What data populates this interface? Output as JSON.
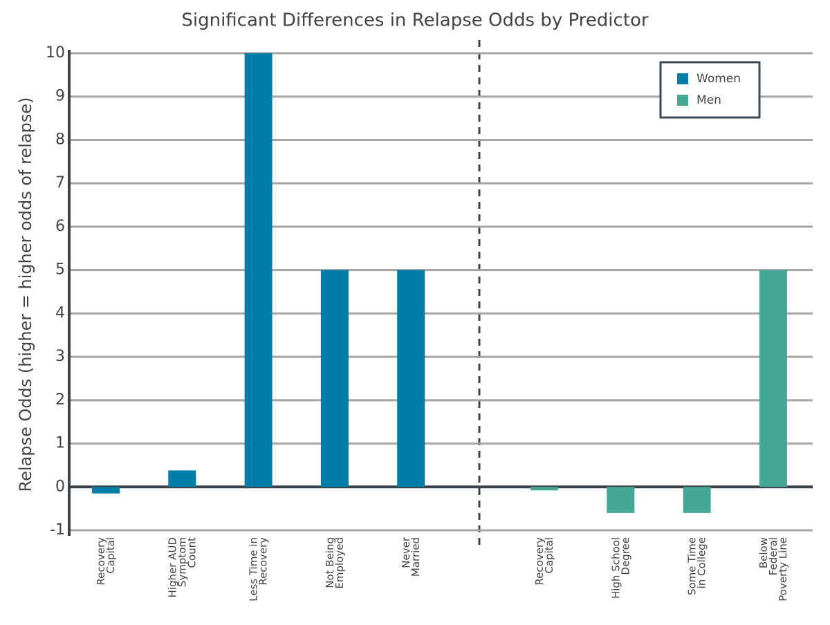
{
  "chart_data": {
    "type": "bar",
    "title": "Significant Differences in Relapse Odds by Predictor",
    "y_label": "Relapse Odds (higher = higher odds of relapse)",
    "categories": [
      [
        "Recovery",
        "Capital"
      ],
      [
        "Higher AUD",
        "Symptom",
        "Count"
      ],
      [
        "Less Time in",
        "Recovery"
      ],
      [
        "Not Being",
        "Employed"
      ],
      [
        "Never",
        "Married"
      ],
      [
        "Recovery",
        "Capital"
      ],
      [
        "High School",
        "Degree"
      ],
      [
        "Some Time",
        "in College"
      ],
      [
        "Below",
        "Federal",
        "Poverty Line"
      ]
    ],
    "series": [
      {
        "name": "Women",
        "color": "#007ea7",
        "values": [
          -0.15,
          0.38,
          10,
          5,
          5,
          null,
          null,
          null,
          null
        ]
      },
      {
        "name": "Men",
        "color": "#45a894",
        "values": [
          null,
          null,
          null,
          null,
          null,
          -0.08,
          -0.6,
          -0.6,
          5
        ]
      }
    ],
    "ylim": [
      -1,
      10
    ],
    "yticks": [
      -1,
      0,
      1,
      2,
      3,
      4,
      5,
      6,
      7,
      8,
      9,
      10
    ],
    "grid": true,
    "legend": "top-right"
  }
}
